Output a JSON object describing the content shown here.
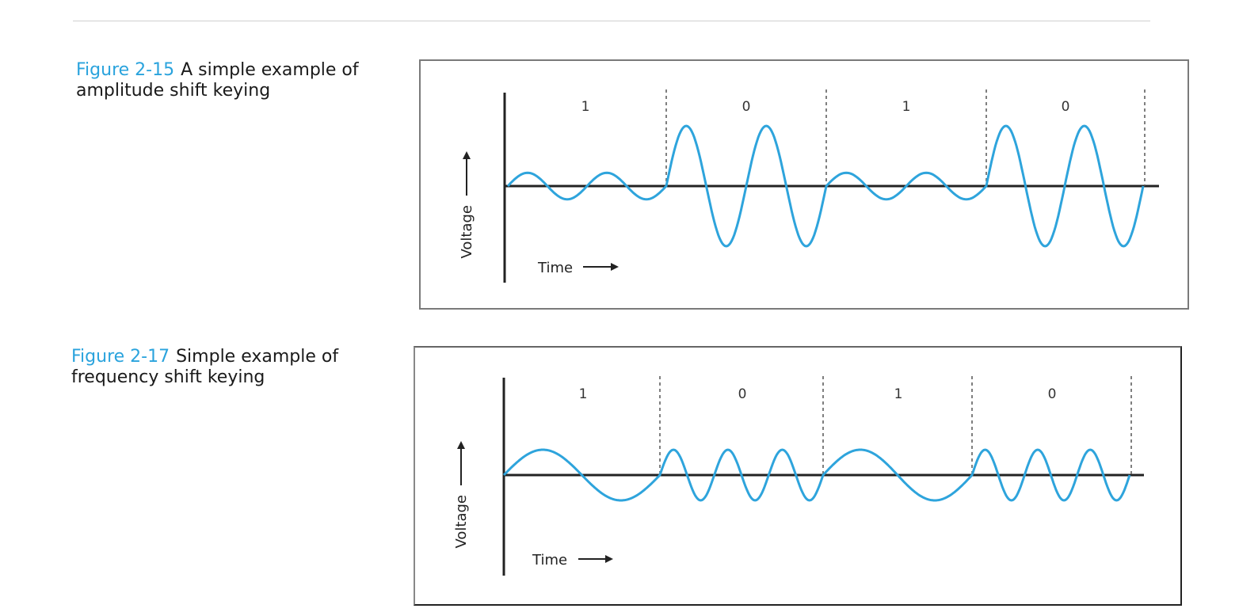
{
  "figures": [
    {
      "number": "Figure 2-15",
      "caption": "A simple example of amplitude shift keying",
      "bits": [
        "1",
        "0",
        "1",
        "0"
      ],
      "y_axis_label": "Voltage",
      "x_axis_label": "Time",
      "modulation": "amplitude",
      "cycles_per_bit": [
        2,
        2,
        2,
        2
      ],
      "relative_amplitude": [
        0.22,
        1,
        0.22,
        1
      ]
    },
    {
      "number": "Figure 2-17",
      "caption": "Simple example of frequency shift keying",
      "bits": [
        "1",
        "0",
        "1",
        "0"
      ],
      "y_axis_label": "Voltage",
      "x_axis_label": "Time",
      "modulation": "frequency",
      "cycles_per_bit": [
        1,
        3,
        1,
        3
      ],
      "relative_amplitude": [
        1,
        1,
        1,
        1
      ]
    }
  ],
  "colors": {
    "figure_number": "#2aa3dd",
    "waveform": "#2ea4dc",
    "axis": "#222222",
    "divider": "#555555"
  }
}
